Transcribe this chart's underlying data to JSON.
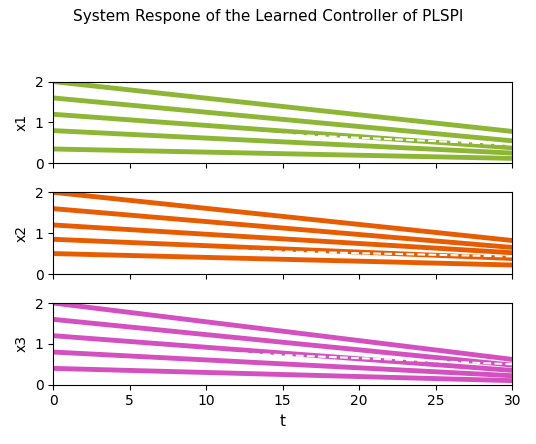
{
  "title": "System Respone of the Learned Controller of PLSPI",
  "title_fontsize": 11,
  "subplots": [
    {
      "ylabel": "x1",
      "color": "#8db634",
      "initial_values": [
        0.35,
        0.8,
        1.2,
        1.6,
        2.0
      ],
      "final_values": [
        0.12,
        0.25,
        0.38,
        0.55,
        0.78
      ],
      "dashed_init": 0.95,
      "dashed_final": 0.46
    },
    {
      "ylabel": "x2",
      "color": "#e85c00",
      "initial_values": [
        0.5,
        0.85,
        1.2,
        1.6,
        2.0
      ],
      "final_values": [
        0.22,
        0.38,
        0.52,
        0.65,
        0.82
      ],
      "dashed_init": 0.67,
      "dashed_final": 0.43
    },
    {
      "ylabel": "x3",
      "color": "#d44fc0",
      "initial_values": [
        0.4,
        0.8,
        1.2,
        1.6,
        2.0
      ],
      "final_values": [
        0.1,
        0.22,
        0.35,
        0.48,
        0.62
      ],
      "dashed_init": 0.95,
      "dashed_final": 0.5
    }
  ],
  "t_start": 0,
  "t_end": 30,
  "n_points": 300,
  "xlim": [
    0,
    30
  ],
  "ylim": [
    0,
    2
  ],
  "xlabel": "t",
  "linewidth": 3.5,
  "dashed_color": "white",
  "dashed_linewidth": 1.5,
  "yticks": [
    0,
    1,
    2
  ],
  "xticks": [
    0,
    5,
    10,
    15,
    20,
    25,
    30
  ],
  "figsize": [
    5.36,
    4.44
  ],
  "dpi": 100
}
